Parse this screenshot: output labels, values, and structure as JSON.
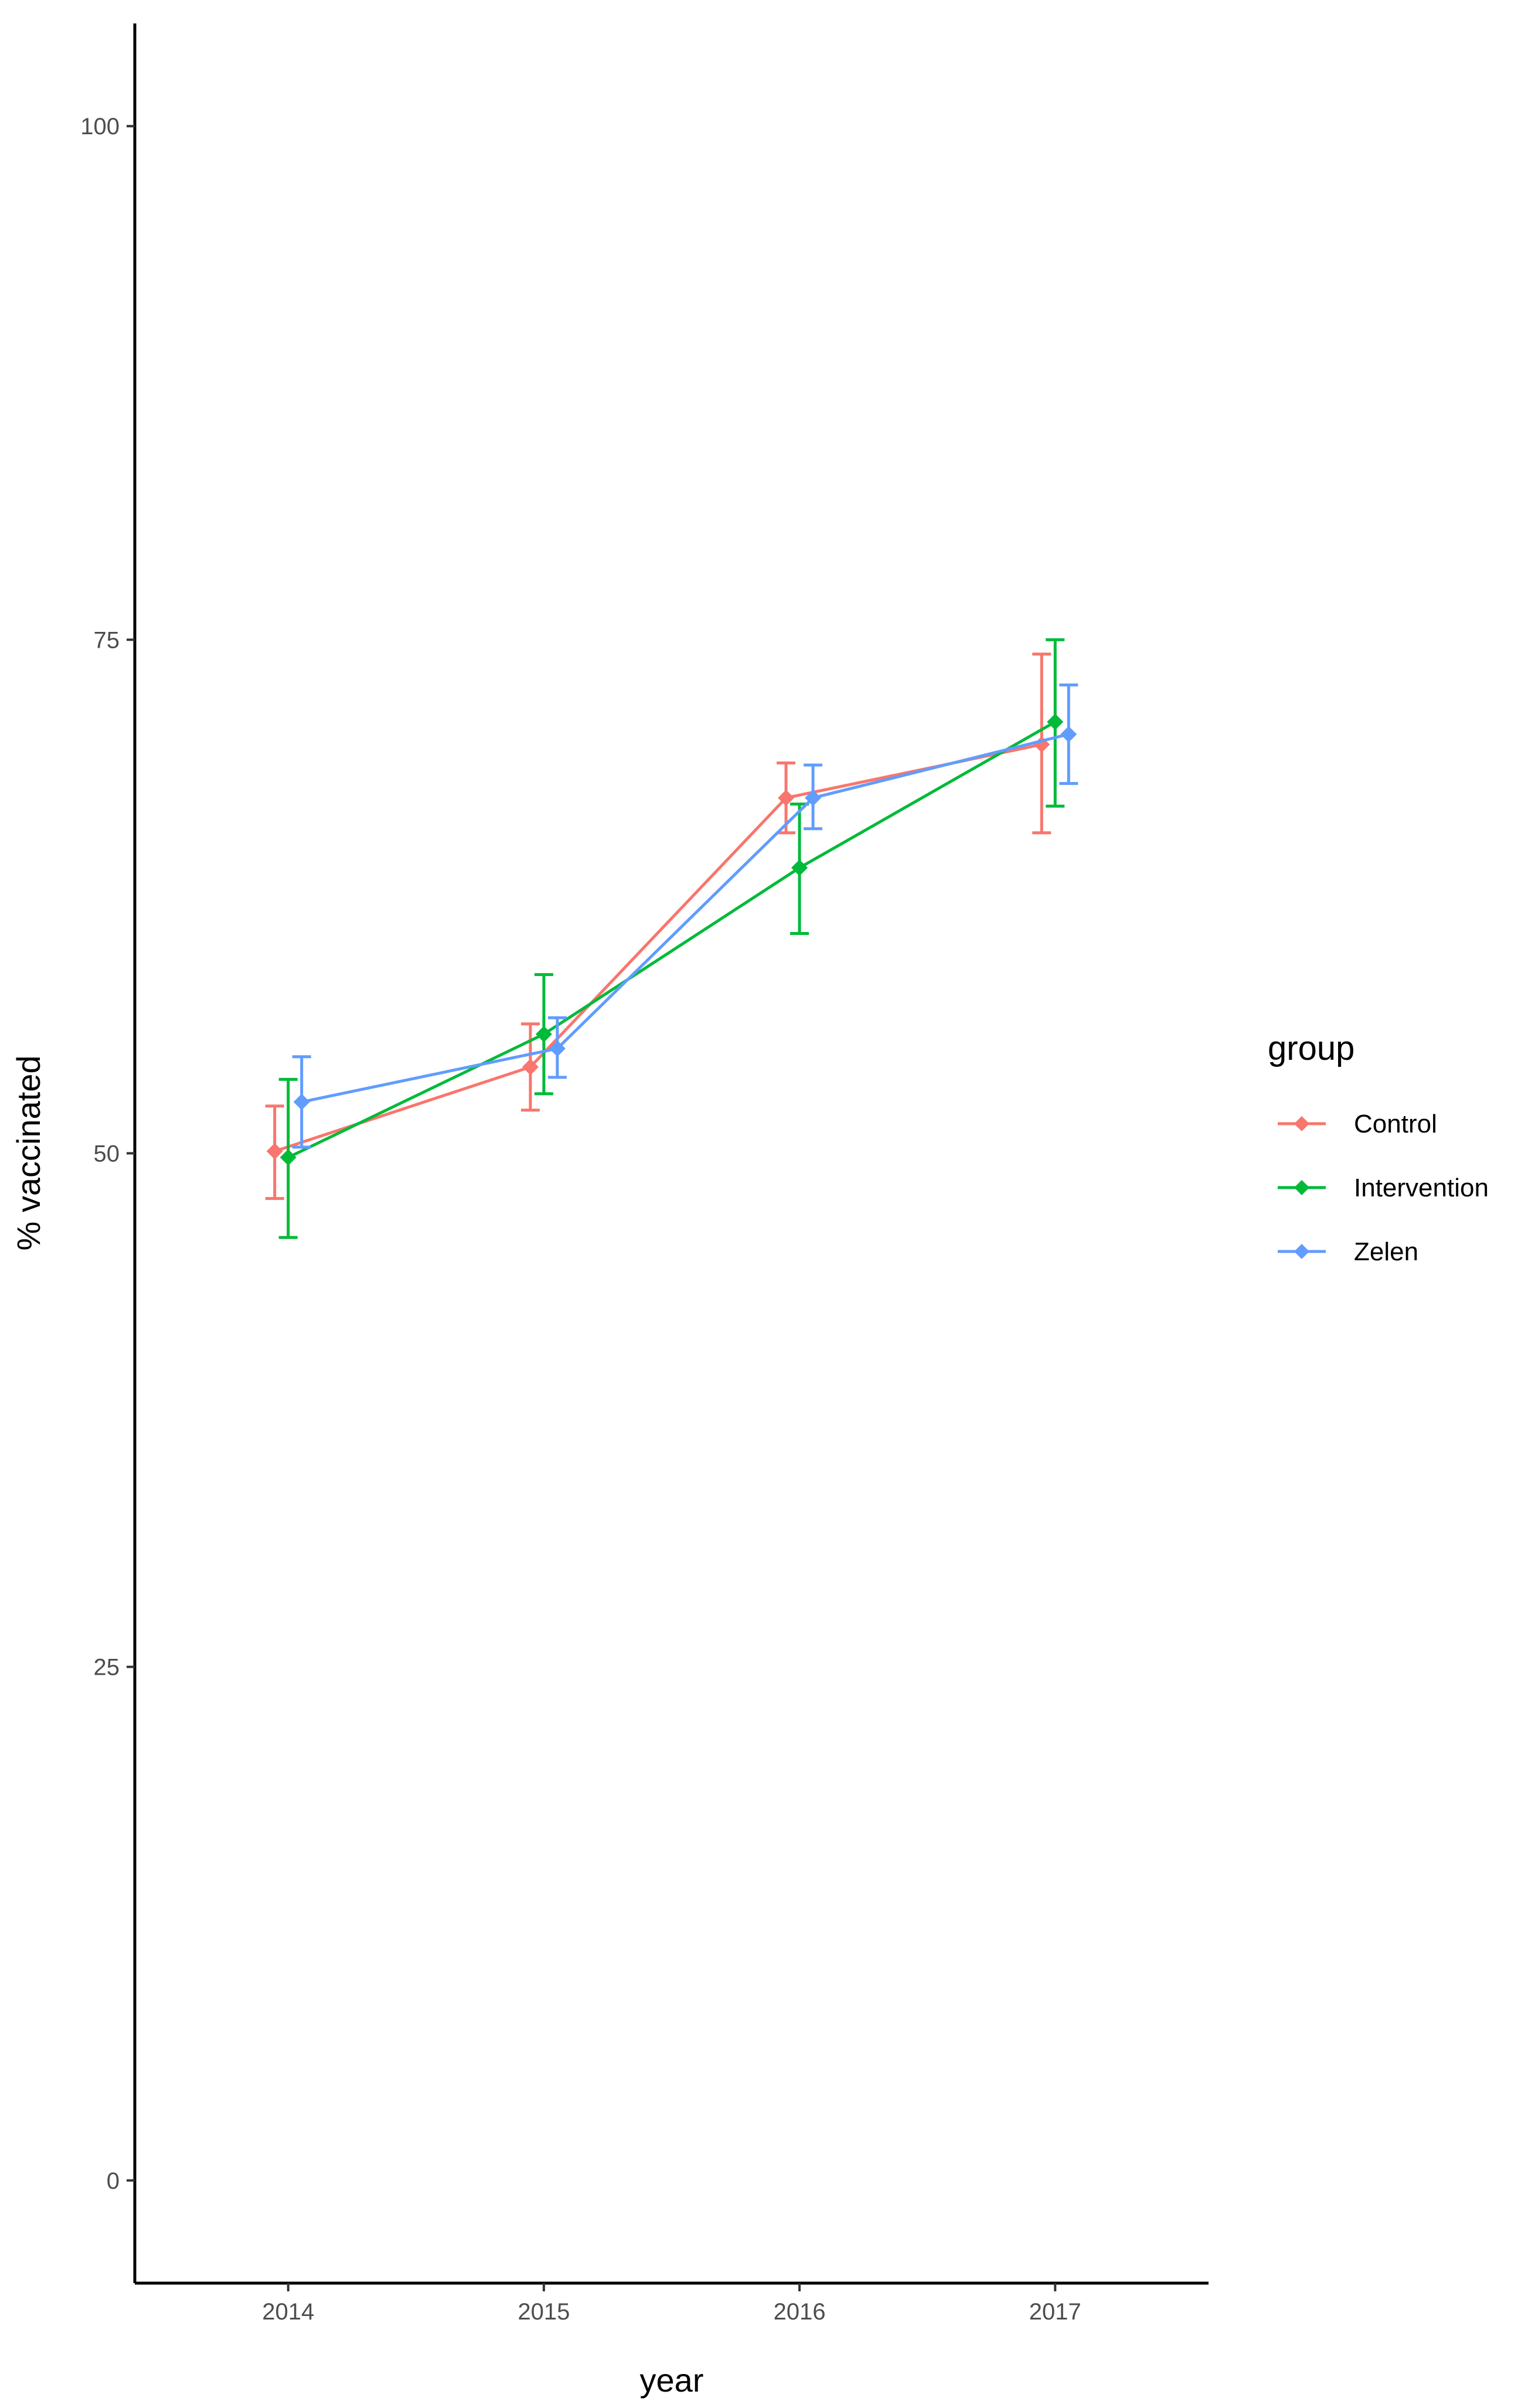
{
  "chart_data": {
    "type": "line",
    "xlabel": "year",
    "ylabel": "% vaccinated",
    "categories": [
      "2014",
      "2015",
      "2016",
      "2017"
    ],
    "ylim": [
      -5,
      105
    ],
    "yticks": [
      "0",
      "25",
      "50",
      "75",
      "100"
    ],
    "grid": false,
    "error_bars": true,
    "legend": {
      "title": "group",
      "position": "right"
    },
    "series": [
      {
        "name": "Control",
        "color": "#f8766d",
        "values": [
          50.1,
          54.2,
          67.3,
          69.9
        ],
        "lower": [
          47.8,
          52.1,
          65.6,
          65.6
        ],
        "upper": [
          52.3,
          56.3,
          69.0,
          74.3
        ]
      },
      {
        "name": "Intervention",
        "color": "#00ba38",
        "values": [
          49.8,
          55.8,
          63.9,
          71.0
        ],
        "lower": [
          45.9,
          52.9,
          60.7,
          66.9
        ],
        "upper": [
          53.6,
          58.7,
          67.0,
          75.0
        ]
      },
      {
        "name": "Zelen",
        "color": "#619cff",
        "values": [
          52.5,
          55.1,
          67.3,
          70.4
        ],
        "lower": [
          50.3,
          53.7,
          65.8,
          68.0
        ],
        "upper": [
          54.7,
          56.6,
          68.9,
          72.8
        ]
      }
    ]
  }
}
